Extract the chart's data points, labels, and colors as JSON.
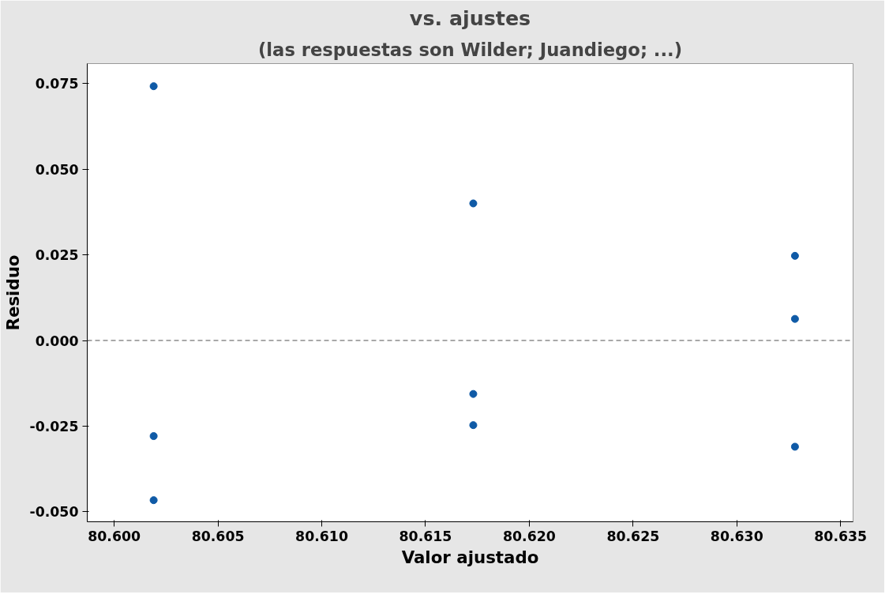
{
  "chart_data": {
    "type": "scatter",
    "title": "vs. ajustes",
    "subtitle": "(las respuestas son Wilder; Juandiego; ...)",
    "xlabel": "Valor ajustado",
    "ylabel": "Residuo",
    "x": [
      80.6019,
      80.6019,
      80.6019,
      80.6173,
      80.6173,
      80.6173,
      80.6328,
      80.6328,
      80.6328
    ],
    "values": [
      0.0742,
      -0.0279,
      -0.0466,
      0.04,
      -0.0156,
      -0.0247,
      0.0247,
      0.0063,
      -0.031
    ],
    "color": "#0f5aa6",
    "marker": "circle",
    "xlim": [
      80.5987,
      80.6356
    ],
    "xticks": [
      {
        "value": 80.6,
        "label": "80.600"
      },
      {
        "value": 80.605,
        "label": "80.605"
      },
      {
        "value": 80.61,
        "label": "80.610"
      },
      {
        "value": 80.615,
        "label": "80.615"
      },
      {
        "value": 80.62,
        "label": "80.620"
      },
      {
        "value": 80.625,
        "label": "80.625"
      },
      {
        "value": 80.63,
        "label": "80.630"
      },
      {
        "value": 80.635,
        "label": "80.635"
      }
    ],
    "ylim": [
      -0.0529,
      0.0808
    ],
    "yticks": [
      {
        "value": -0.05,
        "label": "-0.050"
      },
      {
        "value": -0.025,
        "label": "-0.025"
      },
      {
        "value": 0,
        "label": "0.000"
      },
      {
        "value": 0.025,
        "label": "0.025"
      },
      {
        "value": 0.05,
        "label": "0.050"
      },
      {
        "value": 0.075,
        "label": "0.075"
      }
    ],
    "ref_lines": [
      {
        "axis": "y",
        "value": 0,
        "color": "#8c8c8c",
        "line_style": "dashed"
      }
    ],
    "grid": false
  }
}
